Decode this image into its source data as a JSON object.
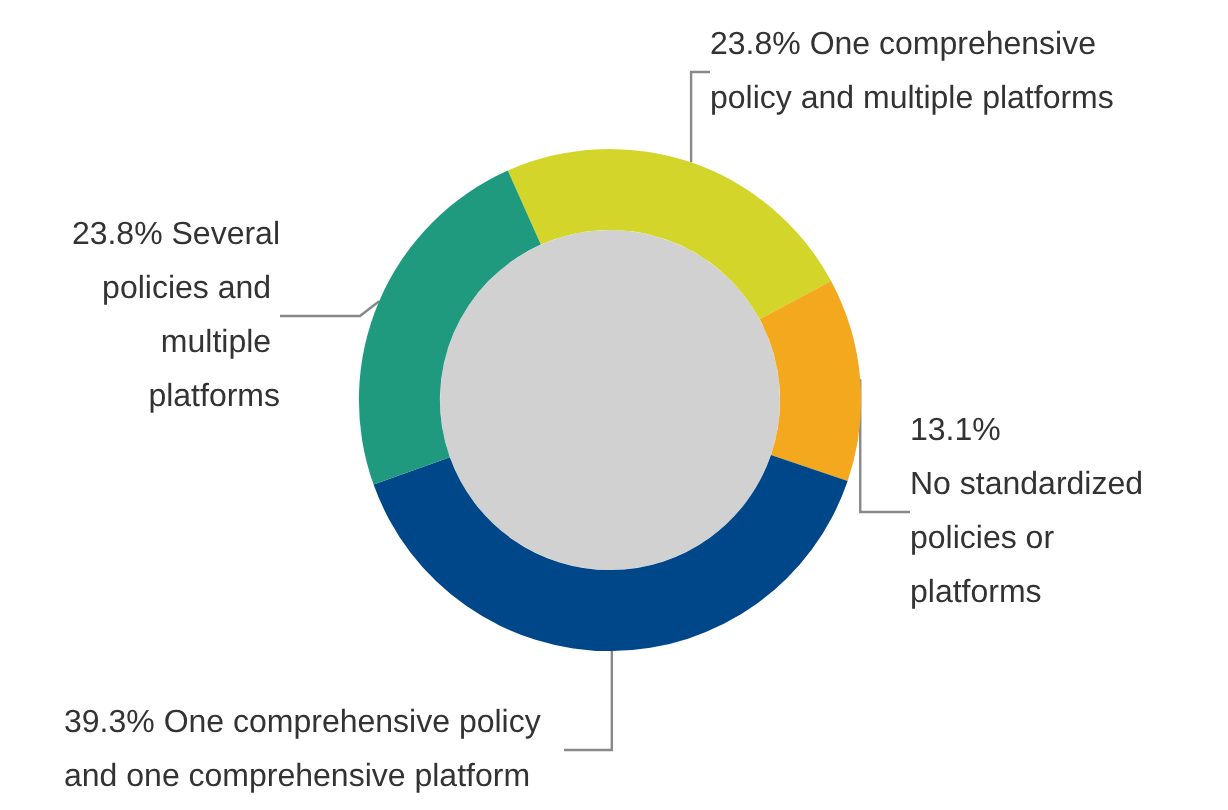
{
  "chart_data": {
    "type": "donut",
    "categories": [
      "One comprehensive policy and multiple platforms",
      "No standardized policies or platforms",
      "One comprehensive policy and one comprehensive platform",
      "Several policies and multiple platforms"
    ],
    "values": [
      23.8,
      13.1,
      39.3,
      23.8
    ],
    "colors": [
      "#d3d52b",
      "#f3a81e",
      "#00478a",
      "#1f9a7e"
    ],
    "value_labels": [
      "23.8%",
      "13.1%",
      "39.3%",
      "23.8%"
    ]
  }
}
